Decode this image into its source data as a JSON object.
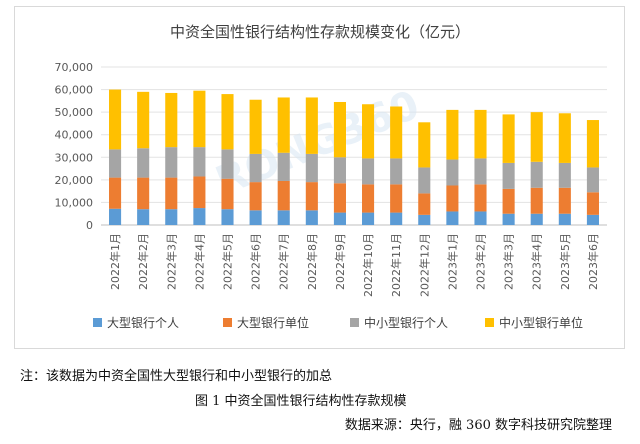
{
  "chart_data": {
    "type": "bar",
    "stacked": true,
    "title": "中资全国性银行结构性存款规模变化（亿元）",
    "categories": [
      "2022年1月",
      "2022年2月",
      "2022年3月",
      "2022年4月",
      "2022年5月",
      "2022年6月",
      "2022年7月",
      "2022年8月",
      "2022年9月",
      "2022年10月",
      "2022年11月",
      "2022年12月",
      "2023年1月",
      "2023年2月",
      "2023年3月",
      "2023年4月",
      "2023年5月",
      "2023年6月"
    ],
    "series": [
      {
        "name": "大型银行个人",
        "color": "#5b9bd5",
        "values": [
          7200,
          7000,
          7000,
          7500,
          7000,
          6500,
          6500,
          6500,
          5500,
          5500,
          5500,
          4500,
          6000,
          6000,
          5000,
          5000,
          5000,
          4500
        ]
      },
      {
        "name": "大型银行单位",
        "color": "#ed7d31",
        "values": [
          13800,
          14000,
          14000,
          14000,
          13500,
          12500,
          13000,
          12500,
          13000,
          12500,
          12500,
          9500,
          11500,
          12000,
          11000,
          11500,
          11500,
          10000
        ]
      },
      {
        "name": "中小型银行个人",
        "color": "#a5a5a5",
        "values": [
          12500,
          13000,
          13500,
          13000,
          13000,
          12500,
          12500,
          12500,
          11500,
          11500,
          11500,
          11500,
          11500,
          11500,
          11500,
          11500,
          11000,
          11000
        ]
      },
      {
        "name": "中小型银行单位",
        "color": "#ffc000",
        "values": [
          26500,
          25000,
          24000,
          25000,
          24500,
          24000,
          24500,
          25000,
          24500,
          24000,
          23000,
          20000,
          22000,
          21500,
          21500,
          22000,
          22000,
          21000
        ]
      }
    ],
    "ylim": [
      0,
      70000
    ],
    "yticks": [
      0,
      10000,
      20000,
      30000,
      40000,
      50000,
      60000,
      70000
    ],
    "ytick_labels": [
      "0",
      "10,000",
      "20,000",
      "30,000",
      "40,000",
      "50,000",
      "60,000",
      "70,000"
    ],
    "grid": true,
    "legend": "bottom",
    "watermark": "RONG360"
  },
  "note": "注：该数据为中资全国性大型银行和中小型银行的加总",
  "figure_caption": "图 1  中资全国性银行结构性存款规模",
  "source": "数据来源：央行，融 360 数字科技研究院整理"
}
